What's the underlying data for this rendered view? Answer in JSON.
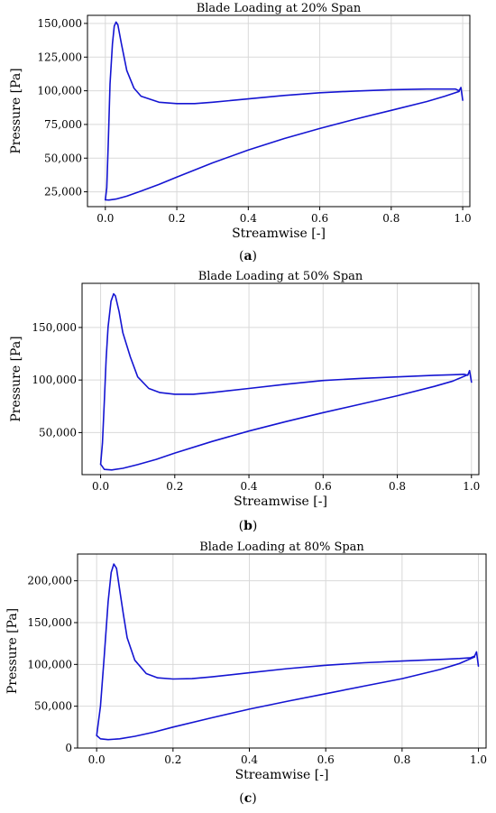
{
  "chart_data": [
    {
      "type": "line",
      "title": "Blade Loading at 20% Span",
      "xlabel": "Streamwise [-]",
      "ylabel": "Pressure [Pa]",
      "panel_label": "a",
      "xlim": [
        -0.05,
        1.02
      ],
      "ylim": [
        14000,
        156000
      ],
      "xticks": [
        0.0,
        0.2,
        0.4,
        0.6,
        0.8,
        1.0
      ],
      "xtick_labels": [
        "0.0",
        "0.2",
        "0.4",
        "0.6",
        "0.8",
        "1.0"
      ],
      "yticks": [
        25000,
        50000,
        75000,
        100000,
        125000,
        150000
      ],
      "ytick_labels": [
        "25,000",
        "50,000",
        "75,000",
        "100,000",
        "125,000",
        "150,000"
      ],
      "grid": true,
      "color": "#1414d2",
      "series": [
        {
          "x": [
            0.0,
            0.004,
            0.008,
            0.013,
            0.02,
            0.025,
            0.03,
            0.035,
            0.045,
            0.06,
            0.08,
            0.1,
            0.15,
            0.2,
            0.25,
            0.3,
            0.4,
            0.5,
            0.6,
            0.7,
            0.8,
            0.9,
            0.95,
            0.98,
            0.99,
            0.995,
            1.0
          ],
          "y": [
            19000,
            28000,
            60000,
            105000,
            135000,
            148000,
            151000,
            149000,
            135000,
            115000,
            102000,
            96000,
            91500,
            90500,
            90500,
            91500,
            94000,
            96500,
            98500,
            99800,
            100800,
            101300,
            101300,
            101300,
            100000,
            102500,
            93000
          ]
        },
        {
          "x": [
            0.0,
            0.01,
            0.03,
            0.06,
            0.1,
            0.15,
            0.2,
            0.3,
            0.4,
            0.5,
            0.6,
            0.7,
            0.8,
            0.9,
            0.95,
            0.99
          ],
          "y": [
            19000,
            18900,
            19600,
            21800,
            25500,
            30500,
            36000,
            46500,
            56000,
            64500,
            72000,
            79000,
            85500,
            92000,
            96000,
            99500
          ]
        }
      ]
    },
    {
      "type": "line",
      "title": "Blade Loading at 50% Span",
      "xlabel": "Streamwise [-]",
      "ylabel": "Pressure [Pa]",
      "panel_label": "b",
      "xlim": [
        -0.05,
        1.02
      ],
      "ylim": [
        10000,
        192000
      ],
      "xticks": [
        0.0,
        0.2,
        0.4,
        0.6,
        0.8,
        1.0
      ],
      "xtick_labels": [
        "0.0",
        "0.2",
        "0.4",
        "0.6",
        "0.8",
        "1.0"
      ],
      "yticks": [
        50000,
        100000,
        150000
      ],
      "ytick_labels": [
        "50,000",
        "100,000",
        "150,000"
      ],
      "grid": true,
      "color": "#1414d2",
      "series": [
        {
          "x": [
            0.0,
            0.005,
            0.01,
            0.015,
            0.02,
            0.028,
            0.035,
            0.04,
            0.05,
            0.06,
            0.08,
            0.1,
            0.13,
            0.16,
            0.2,
            0.25,
            0.3,
            0.4,
            0.5,
            0.6,
            0.7,
            0.8,
            0.9,
            0.95,
            0.98,
            0.99,
            0.995,
            1.0
          ],
          "y": [
            20000,
            40000,
            80000,
            120000,
            150000,
            175000,
            182000,
            180000,
            165000,
            145000,
            122000,
            103000,
            92000,
            88000,
            86500,
            86500,
            88000,
            92000,
            96000,
            99500,
            101500,
            103000,
            104500,
            105000,
            105500,
            104500,
            109000,
            98000
          ]
        },
        {
          "x": [
            0.0,
            0.01,
            0.03,
            0.06,
            0.1,
            0.15,
            0.2,
            0.3,
            0.4,
            0.5,
            0.6,
            0.7,
            0.8,
            0.9,
            0.95,
            0.99
          ],
          "y": [
            20000,
            15000,
            14500,
            16000,
            19500,
            24500,
            30500,
            41500,
            51500,
            60500,
            69000,
            77000,
            85000,
            94000,
            99000,
            105000
          ]
        }
      ]
    },
    {
      "type": "line",
      "title": "Blade Loading at 80% Span",
      "xlabel": "Streamwise [-]",
      "ylabel": "Pressure [Pa]",
      "panel_label": "c",
      "xlim": [
        -0.05,
        1.02
      ],
      "ylim": [
        0,
        232000
      ],
      "xticks": [
        0.0,
        0.2,
        0.4,
        0.6,
        0.8,
        1.0
      ],
      "xtick_labels": [
        "0.0",
        "0.2",
        "0.4",
        "0.6",
        "0.8",
        "1.0"
      ],
      "yticks": [
        0,
        50000,
        100000,
        150000,
        200000
      ],
      "ytick_labels": [
        "0",
        "50,000",
        "100,000",
        "150,000",
        "200,000"
      ],
      "grid": true,
      "color": "#1414d2",
      "series": [
        {
          "x": [
            0.0,
            0.01,
            0.02,
            0.03,
            0.038,
            0.045,
            0.052,
            0.06,
            0.07,
            0.08,
            0.1,
            0.13,
            0.16,
            0.2,
            0.25,
            0.3,
            0.4,
            0.5,
            0.6,
            0.7,
            0.8,
            0.9,
            0.95,
            0.98,
            0.99,
            0.995,
            1.0
          ],
          "y": [
            15000,
            50000,
            110000,
            175000,
            210000,
            220000,
            215000,
            190000,
            160000,
            132000,
            105000,
            89000,
            84000,
            82500,
            83000,
            85000,
            90000,
            95000,
            99000,
            102000,
            104000,
            106000,
            107000,
            108000,
            110000,
            115000,
            98000
          ]
        },
        {
          "x": [
            0.0,
            0.01,
            0.03,
            0.06,
            0.1,
            0.15,
            0.2,
            0.3,
            0.4,
            0.5,
            0.6,
            0.7,
            0.8,
            0.9,
            0.95,
            0.99
          ],
          "y": [
            15000,
            11000,
            10000,
            11000,
            14000,
            19000,
            25000,
            36000,
            46500,
            56000,
            65000,
            74000,
            83000,
            94000,
            101000,
            109000
          ]
        }
      ]
    }
  ]
}
